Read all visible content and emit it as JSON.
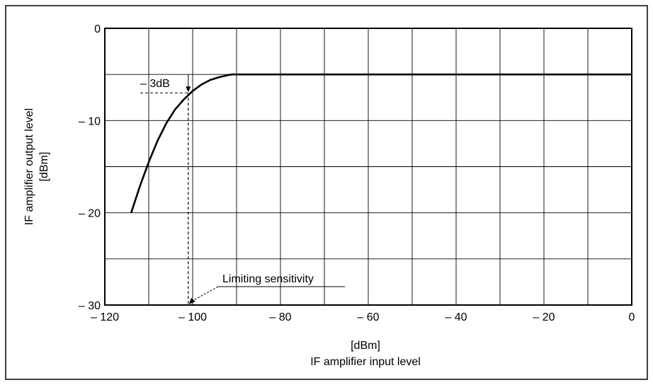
{
  "chart_data": {
    "type": "line",
    "title": "",
    "xlabel_unit": "[dBm]",
    "xlabel": "IF amplifier input level",
    "ylabel": "IF amplifier output level",
    "ylabel_unit": "[dBm]",
    "xlim": [
      -120,
      0
    ],
    "ylim": [
      -30,
      0
    ],
    "grid": true,
    "x_ticks": [
      -120,
      -100,
      -80,
      -60,
      -40,
      -20,
      0
    ],
    "x_tick_labels": [
      "– 120",
      "– 100",
      "– 80",
      "– 60",
      "– 40",
      "– 20",
      "0"
    ],
    "y_ticks": [
      0,
      -10,
      -20,
      -30
    ],
    "y_tick_labels": [
      "0",
      "– 10",
      "– 20",
      "– 30"
    ],
    "series": [
      {
        "x": [
          -114,
          -112,
          -110,
          -108,
          -106,
          -104,
          -102,
          -100,
          -98,
          -96,
          -94,
          -92,
          -91,
          -80,
          -60,
          -40,
          -20,
          0
        ],
        "y": [
          -20,
          -17.1,
          -14.5,
          -12.2,
          -10.3,
          -8.8,
          -7.7,
          -6.8,
          -6.1,
          -5.6,
          -5.3,
          -5.08,
          -5,
          -5,
          -5,
          -5,
          -5,
          -5
        ]
      }
    ],
    "annotations": [
      {
        "text": "– 3dB",
        "x": -101,
        "y": -7
      },
      {
        "text": "Limiting sensitivity",
        "x": -101,
        "y": -30
      }
    ]
  }
}
